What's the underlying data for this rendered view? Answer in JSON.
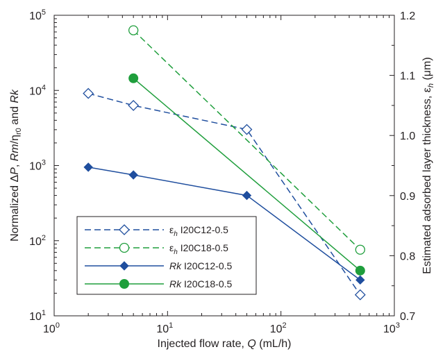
{
  "chart_data": {
    "type": "line",
    "xlabel": {
      "pre": "Injected flow rate, ",
      "var": "Q",
      "post": " (mL/h)"
    },
    "ylabel_left": "Normalized ΔP, Rm/ηr0 and Rk",
    "ylabel_right": "Estimated adsorbed layer thickness, εh (μm)",
    "x_scale": "log",
    "xlim": [
      1,
      1000
    ],
    "x_ticks": [
      {
        "value": 1,
        "base": "10",
        "exp": "0"
      },
      {
        "value": 10,
        "base": "10",
        "exp": "1"
      },
      {
        "value": 100,
        "base": "10",
        "exp": "2"
      },
      {
        "value": 1000,
        "base": "10",
        "exp": "3"
      }
    ],
    "y_left_scale": "log",
    "y_left_lim": [
      10,
      100000
    ],
    "y_left_ticks": [
      {
        "value": 10,
        "base": "10",
        "exp": "1"
      },
      {
        "value": 100,
        "base": "10",
        "exp": "2"
      },
      {
        "value": 1000,
        "base": "10",
        "exp": "3"
      },
      {
        "value": 10000,
        "base": "10",
        "exp": "4"
      },
      {
        "value": 100000,
        "base": "10",
        "exp": "5"
      }
    ],
    "y_right_lim": [
      0.7,
      1.2
    ],
    "y_right_ticks": [
      "0.7",
      "0.8",
      "0.9",
      "1.0",
      "1.1",
      "1.2"
    ],
    "grid": false,
    "legend_position": "bottom-left",
    "series": [
      {
        "id": "eh-c12",
        "symbol": "εh",
        "name": "I20C12-0.5",
        "axis": "right",
        "color": "#1f4e9e",
        "marker": "diamond-open",
        "dash": true,
        "x": [
          2,
          5,
          50,
          500
        ],
        "y": [
          1.07,
          1.05,
          1.01,
          0.735
        ]
      },
      {
        "id": "eh-c18",
        "symbol": "εh",
        "name": "I20C18-0.5",
        "axis": "right",
        "color": "#1f9e3c",
        "marker": "circle-open",
        "dash": true,
        "x": [
          5,
          500
        ],
        "y": [
          1.175,
          0.81
        ]
      },
      {
        "id": "rk-c12",
        "symbol": "Rk",
        "name": "I20C12-0.5",
        "axis": "left",
        "color": "#1f4e9e",
        "marker": "diamond-filled",
        "dash": false,
        "x": [
          2,
          5,
          50,
          500
        ],
        "y": [
          950,
          750,
          400,
          30
        ]
      },
      {
        "id": "rk-c18",
        "symbol": "Rk",
        "name": "I20C18-0.5",
        "axis": "left",
        "color": "#1f9e3c",
        "marker": "circle-filled",
        "dash": false,
        "x": [
          5,
          500
        ],
        "y": [
          14500,
          40
        ]
      }
    ]
  }
}
